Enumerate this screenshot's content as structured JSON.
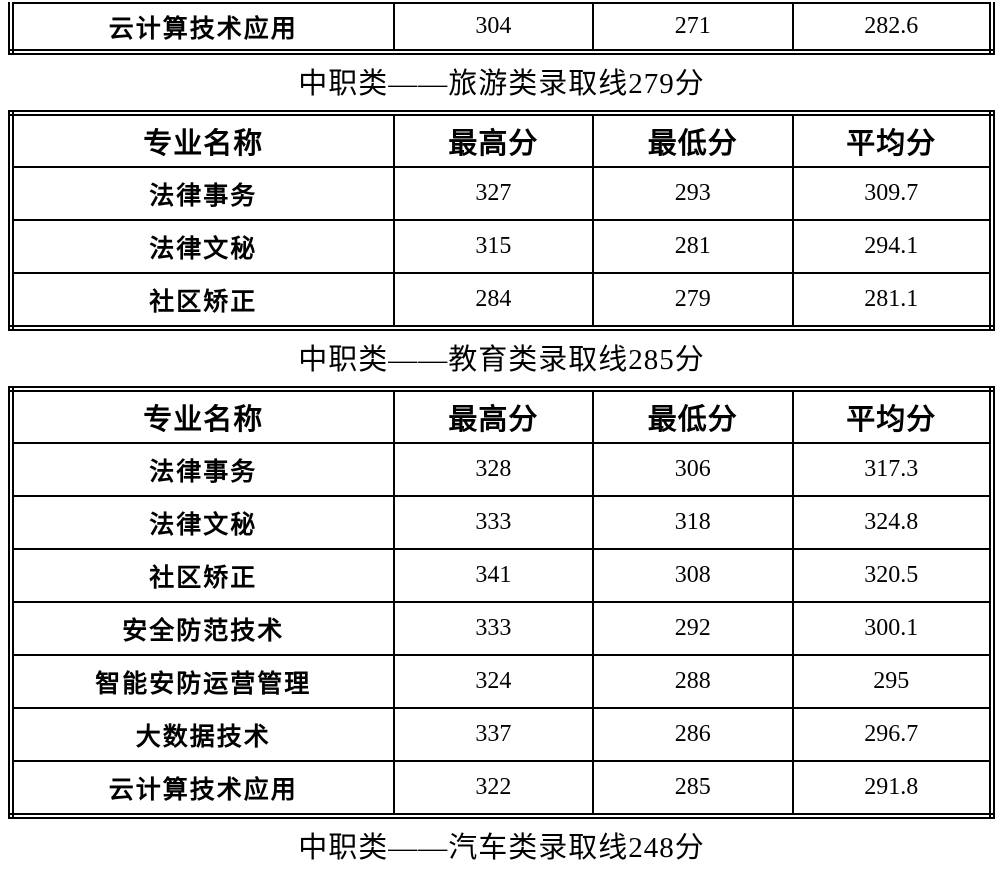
{
  "document": {
    "background": "#ffffff",
    "text_color": "#000000",
    "border_color": "#000000"
  },
  "partial_table": {
    "row": [
      "云计算技术应用",
      "304",
      "271",
      "282.6"
    ]
  },
  "headings": {
    "tourism": "中职类——旅游类录取线279分",
    "education": "中职类——教育类录取线285分",
    "automotive": "中职类——汽车类录取线248分"
  },
  "table_tourism": {
    "headers": [
      "专业名称",
      "最高分",
      "最低分",
      "平均分"
    ],
    "rows": [
      [
        "法律事务",
        "327",
        "293",
        "309.7"
      ],
      [
        "法律文秘",
        "315",
        "281",
        "294.1"
      ],
      [
        "社区矫正",
        "284",
        "279",
        "281.1"
      ]
    ]
  },
  "table_education": {
    "headers": [
      "专业名称",
      "最高分",
      "最低分",
      "平均分"
    ],
    "rows": [
      [
        "法律事务",
        "328",
        "306",
        "317.3"
      ],
      [
        "法律文秘",
        "333",
        "318",
        "324.8"
      ],
      [
        "社区矫正",
        "341",
        "308",
        "320.5"
      ],
      [
        "安全防范技术",
        "333",
        "292",
        "300.1"
      ],
      [
        "智能安防运营管理",
        "324",
        "288",
        "295"
      ],
      [
        "大数据技术",
        "337",
        "286",
        "296.7"
      ],
      [
        "云计算技术应用",
        "322",
        "285",
        "291.8"
      ]
    ]
  }
}
